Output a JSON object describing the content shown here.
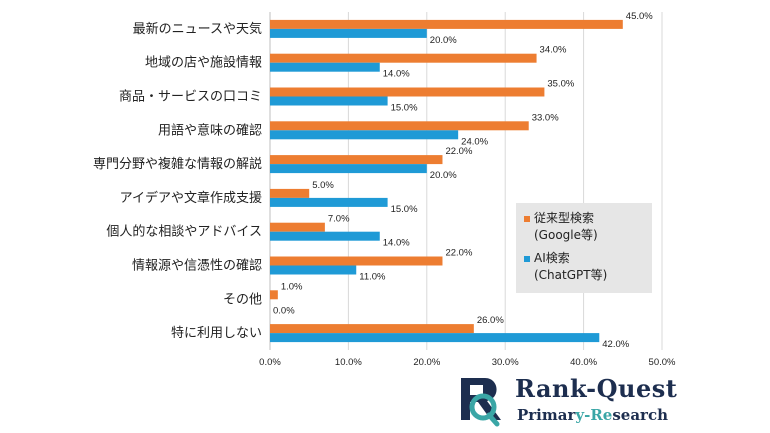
{
  "chart_data": {
    "type": "bar",
    "orientation": "horizontal",
    "categories": [
      "最新のニュースや天気",
      "地域の店や施設情報",
      "商品・サービスの口コミ",
      "用語や意味の確認",
      "専門分野や複雑な情報の解説",
      "アイデアや文章作成支援",
      "個人的な相談やアドバイス",
      "情報源や信憑性の確認",
      "その他",
      "特に利用しない"
    ],
    "series": [
      {
        "name": "従来型検索\n(Google等)",
        "color": "#ed7d31",
        "values": [
          45.0,
          34.0,
          35.0,
          33.0,
          22.0,
          5.0,
          7.0,
          22.0,
          1.0,
          26.0
        ]
      },
      {
        "name": "AI検索\n(ChatGPT等)",
        "color": "#1f9ad6",
        "values": [
          20.0,
          14.0,
          15.0,
          24.0,
          20.0,
          15.0,
          14.0,
          11.0,
          0.0,
          42.0
        ]
      }
    ],
    "xlim": [
      0,
      50
    ],
    "xticks": [
      0,
      10,
      20,
      30,
      40,
      50
    ],
    "value_suffix": "%",
    "grid": true,
    "legend_position": "right"
  },
  "legend": {
    "items": [
      {
        "label": "従来型検索\n(Google等)",
        "color": "#ed7d31"
      },
      {
        "label": "AI検索\n(ChatGPT等)",
        "color": "#1f9ad6"
      }
    ]
  },
  "logo": {
    "title_part1": "Rank-",
    "title_part2": "Quest",
    "sub_part1": "Primar",
    "sub_part2": "y-Re",
    "sub_part3": "search",
    "color_dark": "#1d2e4f",
    "color_teal": "#3aa6a6"
  }
}
